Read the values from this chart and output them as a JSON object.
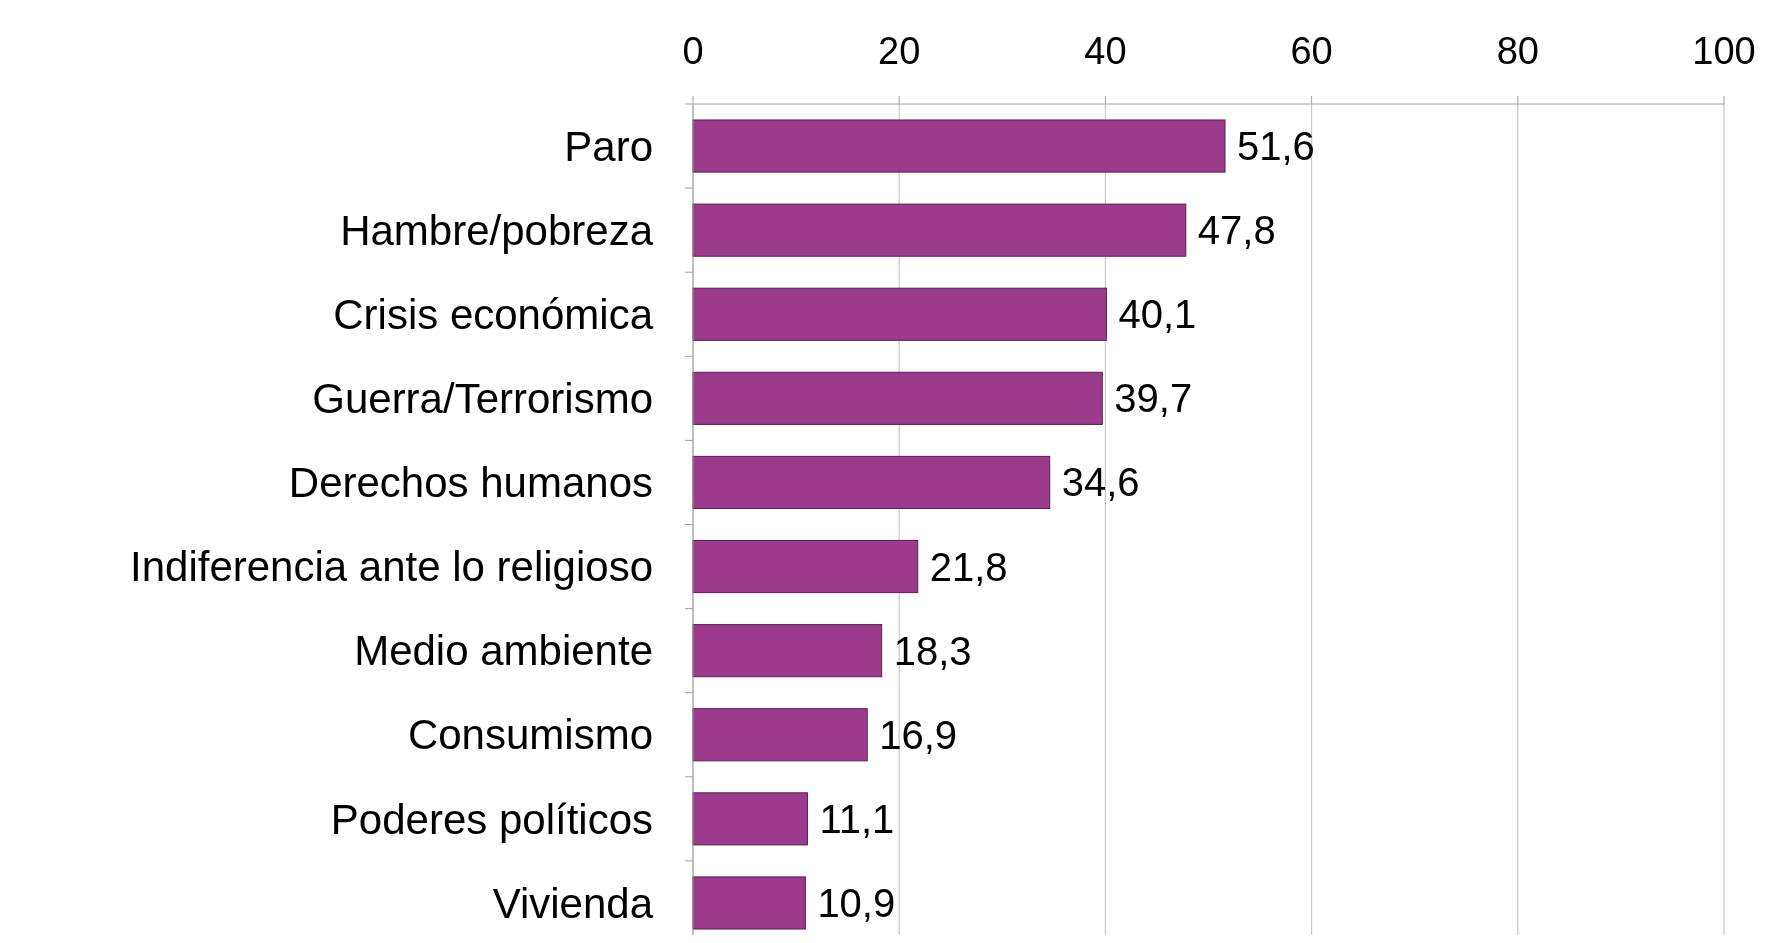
{
  "chart_data": {
    "type": "bar",
    "orientation": "horizontal",
    "categories": [
      "Paro",
      "Hambre/pobreza",
      "Crisis económica",
      "Guerra/Terrorismo",
      "Derechos humanos",
      "Indiferencia ante lo religioso",
      "Medio ambiente",
      "Consumismo",
      "Poderes políticos",
      "Vivienda"
    ],
    "values": [
      51.6,
      47.8,
      40.1,
      39.7,
      34.6,
      21.8,
      18.3,
      16.9,
      11.1,
      10.9
    ],
    "value_labels": [
      "51,6",
      "47,8",
      "40,1",
      "39,7",
      "34,6",
      "21,8",
      "18,3",
      "16,9",
      "11,1",
      "10,9"
    ],
    "color": "#9c3a8b",
    "xlim": [
      0,
      100
    ],
    "xticks": [
      0,
      20,
      40,
      60,
      80,
      100
    ],
    "grid": "x"
  }
}
